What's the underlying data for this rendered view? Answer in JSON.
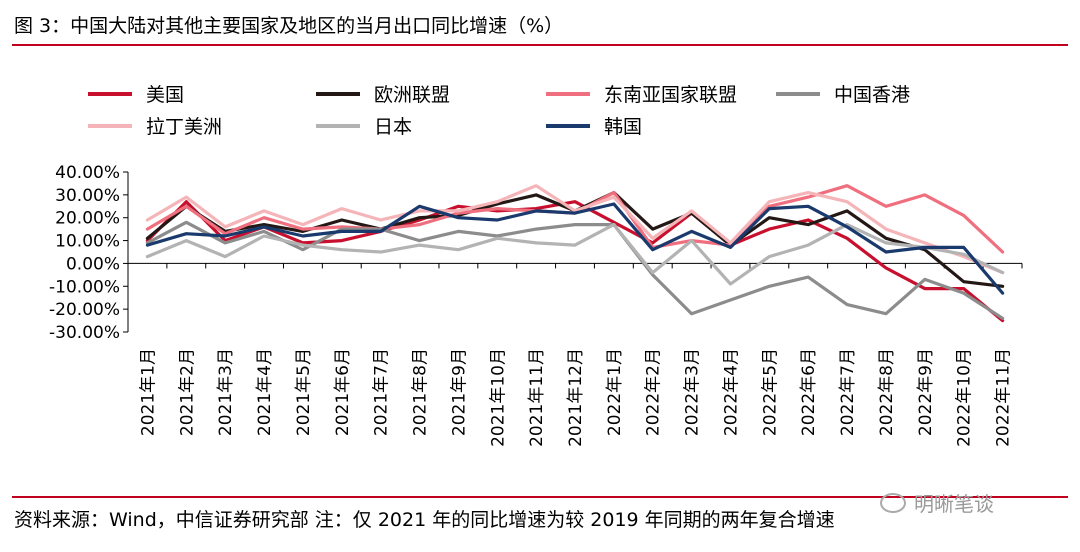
{
  "figure": {
    "title": "图 3：中国大陆对其他主要国家及地区的当月出口同比增速（%）",
    "source": "资料来源：Wind，中信证券研究部 注：仅 2021 年的同比增速为较 2019 年同期的两年复合增速",
    "watermark": "明晰笔谈",
    "watermark_icon": "wechat-icon"
  },
  "chart_data": {
    "type": "line",
    "title": "",
    "xlabel": "",
    "ylabel": "",
    "categories": [
      "2021年1月",
      "2021年2月",
      "2021年3月",
      "2021年4月",
      "2021年5月",
      "2021年6月",
      "2021年7月",
      "2021年8月",
      "2021年9月",
      "2021年10月",
      "2021年11月",
      "2021年12月",
      "2022年1月",
      "2022年2月",
      "2022年3月",
      "2022年4月",
      "2022年5月",
      "2022年6月",
      "2022年7月",
      "2022年8月",
      "2022年9月",
      "2022年10月",
      "2022年11月"
    ],
    "y_ticks": [
      "40.00%",
      "30.00%",
      "20.00%",
      "10.00%",
      "0.00%",
      "-10.00%",
      "-20.00%",
      "-30.00%"
    ],
    "ylim": [
      -30,
      40
    ],
    "legend_position": "top",
    "grid": false,
    "series": [
      {
        "name": "美国",
        "color": "#c8102e",
        "values": [
          10,
          27,
          10,
          16,
          9,
          10,
          14,
          19,
          25,
          23,
          24,
          27,
          18,
          9,
          22,
          8,
          15,
          19,
          11,
          -2,
          -11,
          -11,
          -25
        ]
      },
      {
        "name": "欧洲联盟",
        "color": "#231815",
        "values": [
          11,
          25,
          14,
          17,
          14,
          19,
          15,
          20,
          21,
          26,
          30,
          23,
          31,
          15,
          22,
          8,
          20,
          17,
          23,
          11,
          6,
          -8,
          -10
        ]
      },
      {
        "name": "东南亚国家联盟",
        "color": "#ef6f7e",
        "values": [
          15,
          25,
          13,
          20,
          15,
          16,
          15,
          17,
          22,
          24,
          23,
          22,
          31,
          7,
          10,
          8,
          25,
          29,
          34,
          25,
          30,
          21,
          5
        ]
      },
      {
        "name": "中国香港",
        "color": "#8c8c8c",
        "values": [
          9,
          18,
          9,
          14,
          6,
          15,
          15,
          10,
          14,
          12,
          15,
          17,
          17,
          -5,
          -22,
          -16,
          -10,
          -6,
          -18,
          -22,
          -7,
          -13,
          -24
        ]
      },
      {
        "name": "拉丁美洲",
        "color": "#f5b5b8",
        "values": [
          19,
          29,
          16,
          23,
          17,
          24,
          19,
          23,
          23,
          27,
          34,
          23,
          29,
          11,
          23,
          9,
          27,
          31,
          27,
          15,
          9,
          3,
          -4
        ]
      },
      {
        "name": "日本",
        "color": "#b3b3b3",
        "values": [
          3,
          10,
          3,
          12,
          8,
          6,
          5,
          8,
          6,
          11,
          9,
          8,
          17,
          -4,
          10,
          -9,
          3,
          8,
          17,
          9,
          7,
          4,
          -4
        ]
      },
      {
        "name": "韩国",
        "color": "#1a3a6e",
        "values": [
          8,
          13,
          12,
          16,
          12,
          14,
          14,
          25,
          20,
          19,
          23,
          22,
          26,
          6,
          14,
          7,
          24,
          25,
          16,
          5,
          7,
          7,
          -13
        ]
      }
    ]
  }
}
